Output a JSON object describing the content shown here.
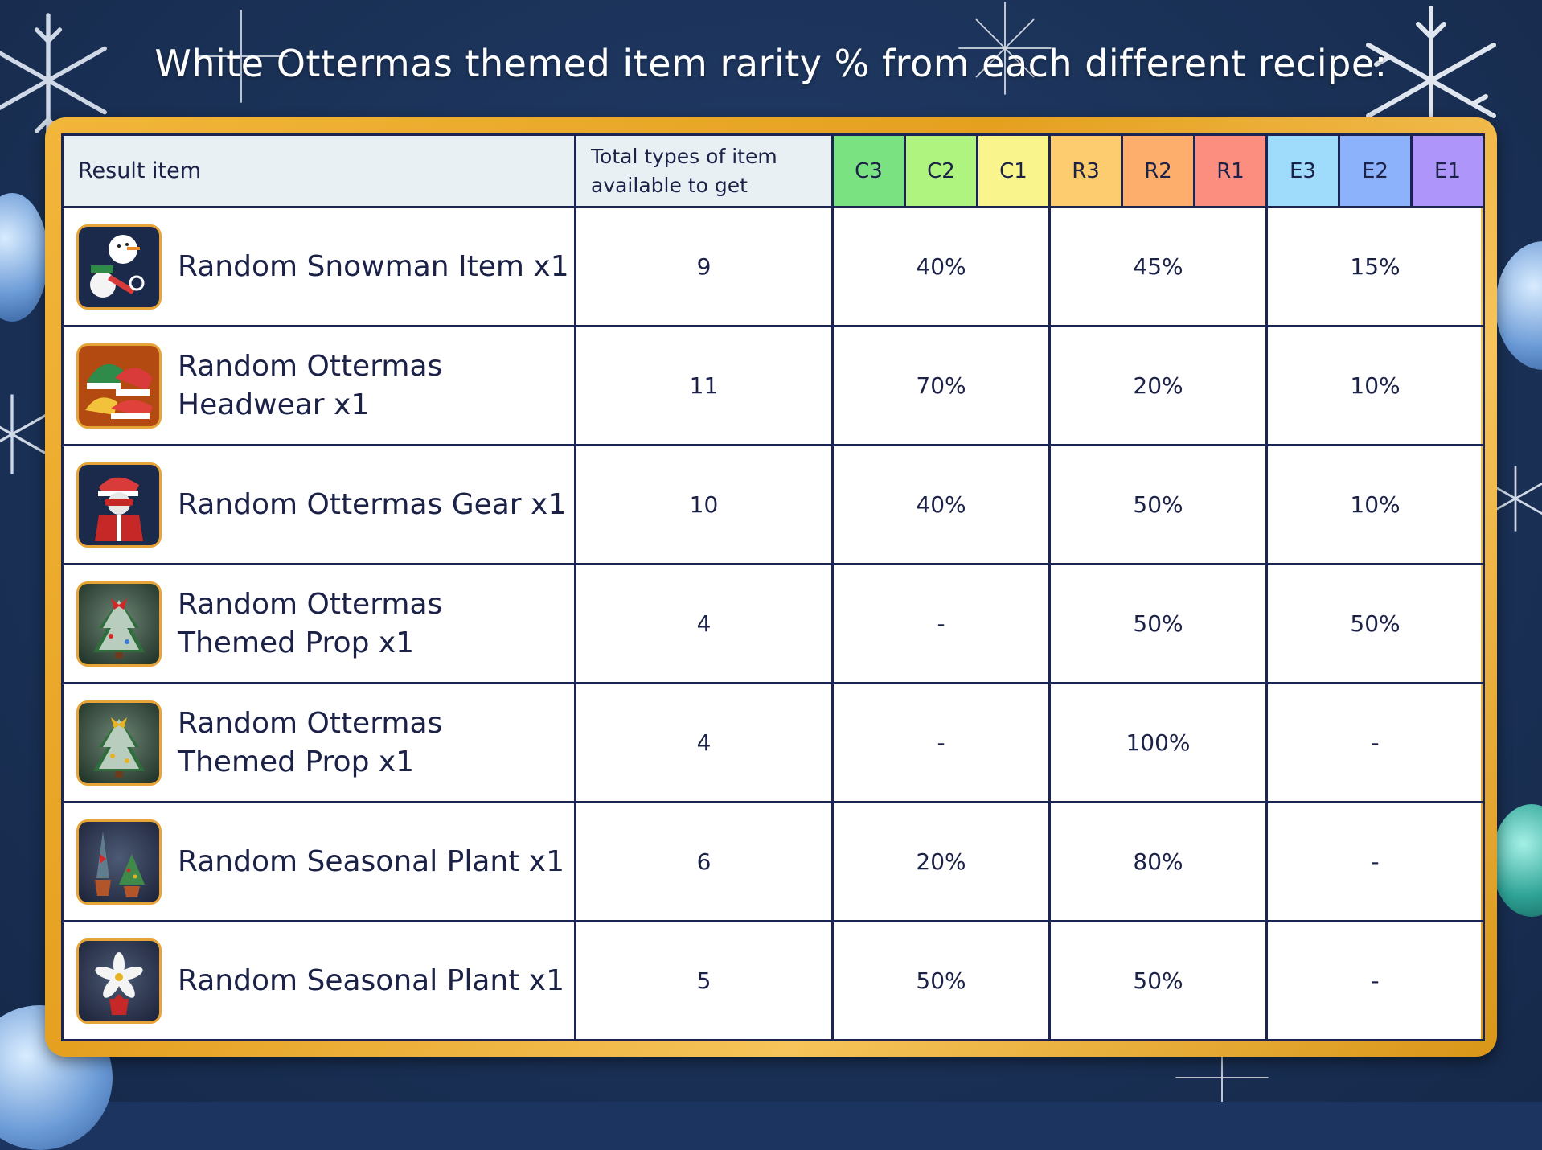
{
  "title": "White Ottermas themed item rarity % from each different recipe:",
  "headers": {
    "result": "Result item",
    "total": "Total types of item available to get",
    "tiers": [
      {
        "label": "C3",
        "color": "#7be282"
      },
      {
        "label": "C2",
        "color": "#aef47e"
      },
      {
        "label": "C1",
        "color": "#f9f58c"
      },
      {
        "label": "R3",
        "color": "#fdcc6e"
      },
      {
        "label": "R2",
        "color": "#fdae6c"
      },
      {
        "label": "R1",
        "color": "#fb8e7e"
      },
      {
        "label": "E3",
        "color": "#9fdcfb"
      },
      {
        "label": "E2",
        "color": "#8cb2fb"
      },
      {
        "label": "E1",
        "color": "#ad95f9"
      }
    ]
  },
  "rows": [
    {
      "icon": "snowman-icon",
      "name": "Random Snowman Item x1",
      "total": "9",
      "common": "40%",
      "rare": "45%",
      "epic": "15%"
    },
    {
      "icon": "headwear-icon",
      "name": "Random Ottermas Headwear x1",
      "total": "11",
      "common": "70%",
      "rare": "20%",
      "epic": "10%"
    },
    {
      "icon": "gear-icon",
      "name": "Random Ottermas Gear x1",
      "total": "10",
      "common": "40%",
      "rare": "50%",
      "epic": "10%"
    },
    {
      "icon": "tree-red-bow-icon",
      "name": "Random Ottermas Themed Prop x1",
      "total": "4",
      "common": "-",
      "rare": "50%",
      "epic": "50%"
    },
    {
      "icon": "tree-gold-bow-icon",
      "name": "Random Ottermas Themed Prop x1",
      "total": "4",
      "common": "-",
      "rare": "100%",
      "epic": "-"
    },
    {
      "icon": "potted-plants-icon",
      "name": "Random Seasonal Plant x1",
      "total": "6",
      "common": "20%",
      "rare": "80%",
      "epic": "-"
    },
    {
      "icon": "poinsettia-icon",
      "name": "Random Seasonal Plant x1",
      "total": "5",
      "common": "50%",
      "rare": "50%",
      "epic": "-"
    }
  ]
}
